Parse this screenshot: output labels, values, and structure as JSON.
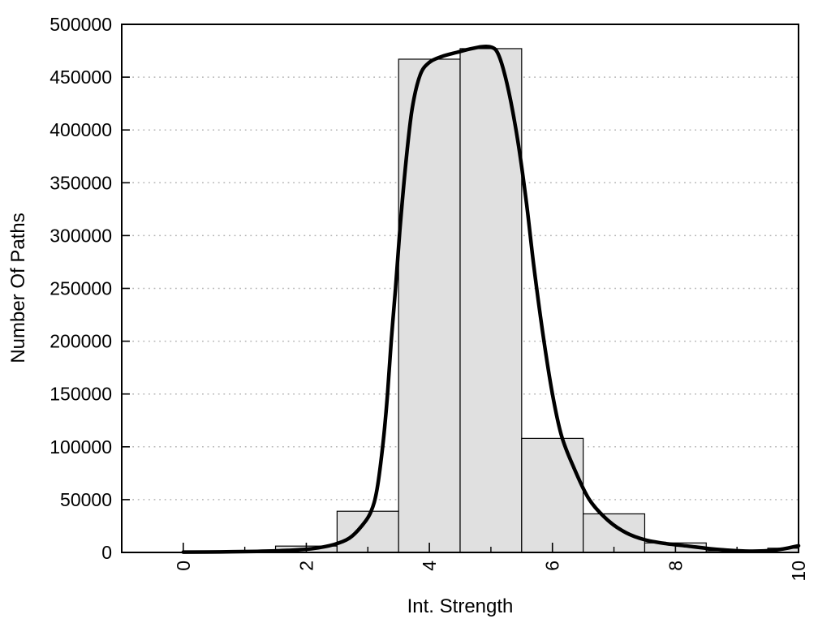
{
  "chart_data": {
    "type": "bar",
    "subtype": "histogram-with-fit-curve",
    "title": "",
    "xlabel": "Int. Strength",
    "ylabel": "Number Of Paths",
    "xlim": [
      -1,
      10
    ],
    "ylim": [
      0,
      500000
    ],
    "grid": "horizontal-dotted",
    "legend_position": "none",
    "x_major_ticks": [
      {
        "v": 0,
        "label": "0"
      },
      {
        "v": 2,
        "label": "2"
      },
      {
        "v": 4,
        "label": "4"
      },
      {
        "v": 6,
        "label": "6"
      },
      {
        "v": 8,
        "label": "8"
      },
      {
        "v": 10,
        "label": "10"
      }
    ],
    "x_minor_ticks": [
      1,
      3,
      5,
      7,
      9
    ],
    "y_ticks": [
      {
        "v": 0,
        "label": "0"
      },
      {
        "v": 50000,
        "label": "50000"
      },
      {
        "v": 100000,
        "label": "100000"
      },
      {
        "v": 150000,
        "label": "150000"
      },
      {
        "v": 200000,
        "label": "200000"
      },
      {
        "v": 250000,
        "label": "250000"
      },
      {
        "v": 300000,
        "label": "300000"
      },
      {
        "v": 350000,
        "label": "350000"
      },
      {
        "v": 400000,
        "label": "400000"
      },
      {
        "v": 450000,
        "label": "450000"
      },
      {
        "v": 500000,
        "label": "500000"
      }
    ],
    "bars": {
      "bin_width": 1,
      "categories": [
        0,
        1,
        2,
        3,
        4,
        5,
        6,
        7,
        8,
        9,
        10
      ],
      "values": [
        0,
        0,
        6000,
        39000,
        467000,
        477000,
        108000,
        36500,
        9000,
        1500,
        4000
      ]
    },
    "curve": {
      "name": "smoothed-fit",
      "points": [
        [
          0,
          300
        ],
        [
          0.6,
          500
        ],
        [
          1.2,
          1000
        ],
        [
          1.7,
          1900
        ],
        [
          2.1,
          3600
        ],
        [
          2.45,
          7500
        ],
        [
          2.7,
          13500
        ],
        [
          2.9,
          25000
        ],
        [
          3.05,
          38500
        ],
        [
          3.15,
          60000
        ],
        [
          3.25,
          105000
        ],
        [
          3.32,
          150000
        ],
        [
          3.38,
          200000
        ],
        [
          3.45,
          250000
        ],
        [
          3.52,
          305000
        ],
        [
          3.62,
          370000
        ],
        [
          3.72,
          420000
        ],
        [
          3.85,
          452000
        ],
        [
          4.0,
          464000
        ],
        [
          4.2,
          469500
        ],
        [
          4.45,
          473500
        ],
        [
          4.65,
          476500
        ],
        [
          4.85,
          478800
        ],
        [
          5.0,
          478500
        ],
        [
          5.1,
          474000
        ],
        [
          5.2,
          458000
        ],
        [
          5.32,
          428000
        ],
        [
          5.45,
          385000
        ],
        [
          5.58,
          330000
        ],
        [
          5.7,
          270000
        ],
        [
          5.85,
          205000
        ],
        [
          6.0,
          150000
        ],
        [
          6.15,
          110000
        ],
        [
          6.35,
          80000
        ],
        [
          6.6,
          50000
        ],
        [
          6.9,
          30500
        ],
        [
          7.2,
          18500
        ],
        [
          7.5,
          12000
        ],
        [
          7.85,
          8300
        ],
        [
          8.2,
          6000
        ],
        [
          8.55,
          3600
        ],
        [
          8.9,
          1900
        ],
        [
          9.2,
          1200
        ],
        [
          9.5,
          1600
        ],
        [
          9.75,
          3300
        ],
        [
          10,
          6300
        ]
      ]
    },
    "colors": {
      "background": "#ffffff",
      "bar_fill": "#e0e0e0",
      "bar_stroke": "#000000",
      "curve": "#000000",
      "grid": "#b5b5b5",
      "axis": "#000000"
    }
  }
}
